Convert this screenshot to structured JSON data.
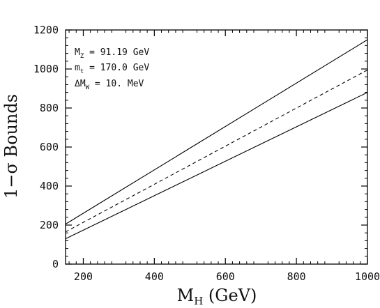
{
  "chart_data": {
    "type": "line",
    "title": "",
    "xlabel": {
      "main": "M",
      "sub": "H",
      "rest": " (GeV)"
    },
    "ylabel": "1−σ Bounds",
    "xlim": [
      150,
      1000
    ],
    "ylim": [
      0,
      1200
    ],
    "x_ticks": [
      "200",
      "400",
      "600",
      "800",
      "1000"
    ],
    "y_ticks": [
      "0",
      "200",
      "400",
      "600",
      "800",
      "1000",
      "1200"
    ],
    "annotations": [
      {
        "main": "M",
        "sub": "Z",
        "rest": " = 91.19 GeV"
      },
      {
        "main": "m",
        "sub": "t",
        "rest": " = 170.0 GeV"
      },
      {
        "main": "ΔM",
        "sub": "W",
        "rest": " = 10. MeV"
      }
    ],
    "series": [
      {
        "style": "solid",
        "x": [
          150,
          1000
        ],
        "y": [
          205,
          1150
        ]
      },
      {
        "style": "dashed",
        "x": [
          150,
          1000
        ],
        "y": [
          165,
          995
        ]
      },
      {
        "style": "solid",
        "x": [
          150,
          1000
        ],
        "y": [
          130,
          880
        ]
      }
    ],
    "grid": false,
    "legend": "none"
  }
}
